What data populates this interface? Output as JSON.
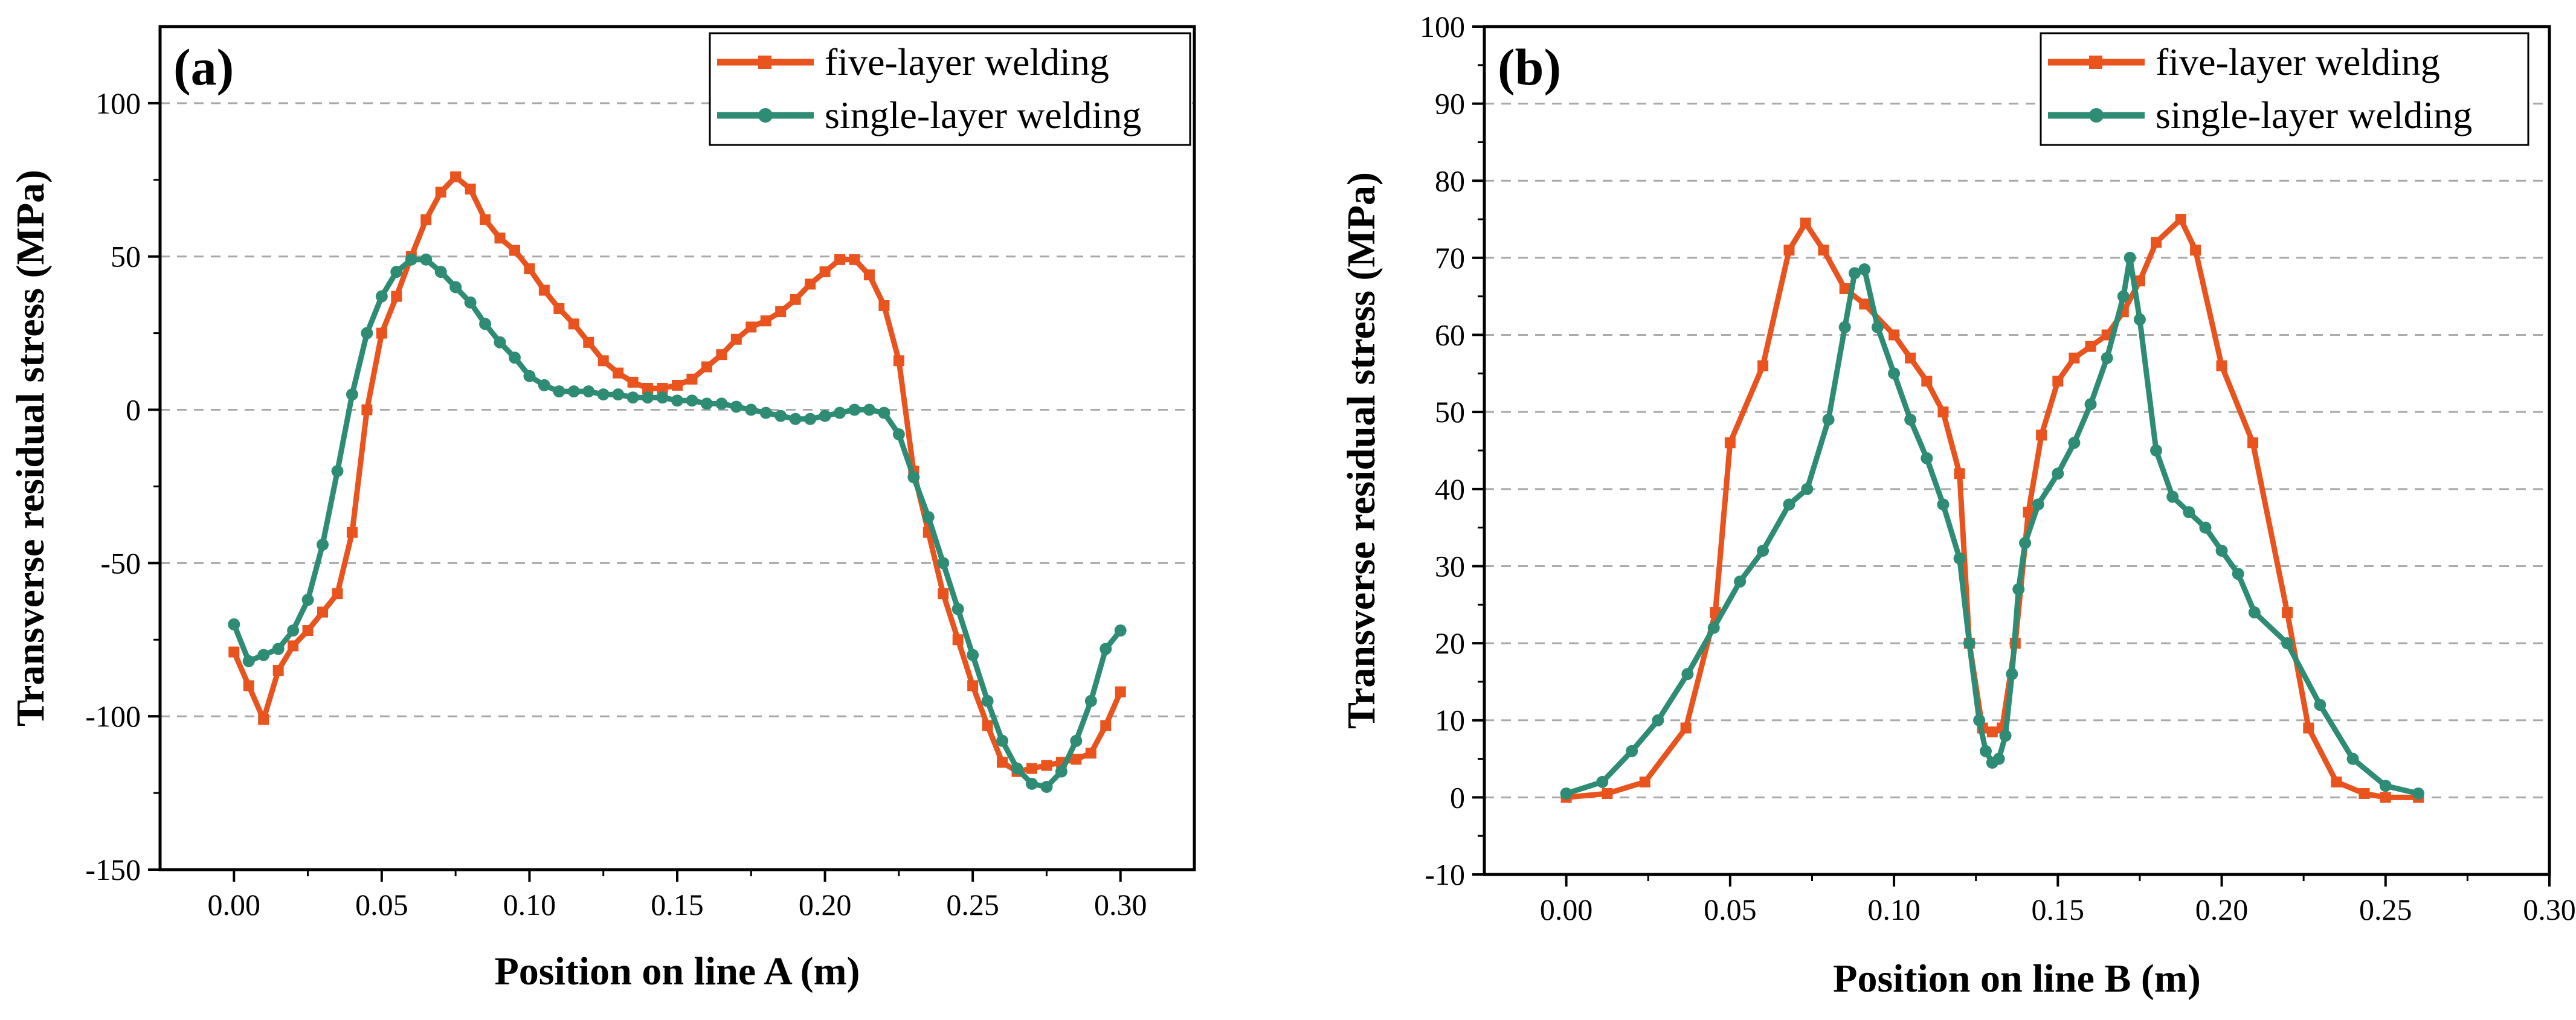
{
  "chart_data": [
    {
      "type": "line",
      "panel_label": "(a)",
      "xlabel": "Position on line A (m)",
      "ylabel": "Transverse residual stress (MPa)",
      "xlim": [
        -0.025,
        0.325
      ],
      "ylim": [
        -150,
        125
      ],
      "xticks": [
        0.0,
        0.05,
        0.1,
        0.15,
        0.2,
        0.25,
        0.3
      ],
      "xtick_labels": [
        "0.00",
        "0.05",
        "0.10",
        "0.15",
        "0.20",
        "0.25",
        "0.30"
      ],
      "yticks": [
        -150,
        -100,
        -50,
        0,
        50,
        100
      ],
      "ytick_labels": [
        "-150",
        "-100",
        "-50",
        "0",
        "50",
        "100"
      ],
      "grid": "horizontal dashed",
      "legend_position": "top-right",
      "series": [
        {
          "name": "five-layer welding",
          "color": "#E8531E",
          "marker": "square",
          "x": [
            0.0,
            0.005,
            0.01,
            0.015,
            0.02,
            0.025,
            0.03,
            0.035,
            0.04,
            0.045,
            0.05,
            0.055,
            0.06,
            0.065,
            0.07,
            0.075,
            0.08,
            0.085,
            0.09,
            0.095,
            0.1,
            0.105,
            0.11,
            0.115,
            0.12,
            0.125,
            0.13,
            0.135,
            0.14,
            0.145,
            0.15,
            0.155,
            0.16,
            0.165,
            0.17,
            0.175,
            0.18,
            0.185,
            0.19,
            0.195,
            0.2,
            0.205,
            0.21,
            0.215,
            0.22,
            0.225,
            0.23,
            0.235,
            0.24,
            0.245,
            0.25,
            0.255,
            0.26,
            0.265,
            0.27,
            0.275,
            0.28,
            0.285,
            0.29,
            0.295,
            0.3
          ],
          "y": [
            -79,
            -90,
            -101,
            -85,
            -77,
            -72,
            -66,
            -60,
            -40,
            0,
            25,
            37,
            50,
            62,
            71,
            76,
            72,
            62,
            56,
            52,
            46,
            39,
            33,
            28,
            22,
            16,
            12,
            9,
            7,
            7,
            8,
            10,
            14,
            18,
            23,
            27,
            29,
            32,
            36,
            41,
            45,
            49,
            49,
            44,
            34,
            16,
            -20,
            -40,
            -60,
            -75,
            -90,
            -103,
            -115,
            -118,
            -117,
            -116,
            -115,
            -114,
            -112,
            -103,
            -92
          ]
        },
        {
          "name": "single-layer welding",
          "color": "#2E8C75",
          "marker": "circle",
          "x": [
            0.0,
            0.005,
            0.01,
            0.015,
            0.02,
            0.025,
            0.03,
            0.035,
            0.04,
            0.045,
            0.05,
            0.055,
            0.06,
            0.065,
            0.07,
            0.075,
            0.08,
            0.085,
            0.09,
            0.095,
            0.1,
            0.105,
            0.11,
            0.115,
            0.12,
            0.125,
            0.13,
            0.135,
            0.14,
            0.145,
            0.15,
            0.155,
            0.16,
            0.165,
            0.17,
            0.175,
            0.18,
            0.185,
            0.19,
            0.195,
            0.2,
            0.205,
            0.21,
            0.215,
            0.22,
            0.225,
            0.23,
            0.235,
            0.24,
            0.245,
            0.25,
            0.255,
            0.26,
            0.265,
            0.27,
            0.275,
            0.28,
            0.285,
            0.29,
            0.295,
            0.3
          ],
          "y": [
            -70,
            -82,
            -80,
            -78,
            -72,
            -62,
            -44,
            -20,
            5,
            25,
            37,
            45,
            49,
            49,
            45,
            40,
            35,
            28,
            22,
            17,
            11,
            8,
            6,
            6,
            6,
            5,
            5,
            4,
            4,
            4,
            3,
            3,
            2,
            2,
            1,
            0,
            -1,
            -2,
            -3,
            -3,
            -2,
            -1,
            0,
            0,
            -1,
            -8,
            -22,
            -35,
            -50,
            -65,
            -80,
            -95,
            -108,
            -117,
            -122,
            -123,
            -118,
            -108,
            -95,
            -78,
            -72
          ]
        }
      ]
    },
    {
      "type": "line",
      "panel_label": "(b)",
      "xlabel": "Position on line B (m)",
      "ylabel": "Transverse residual stress (MPa)",
      "xlim": [
        -0.025,
        0.3
      ],
      "ylim": [
        -10,
        100
      ],
      "xticks": [
        0.0,
        0.05,
        0.1,
        0.15,
        0.2,
        0.25,
        0.3
      ],
      "xtick_labels": [
        "0.00",
        "0.05",
        "0.10",
        "0.15",
        "0.20",
        "0.25",
        "0.30"
      ],
      "yticks": [
        -10,
        0,
        10,
        20,
        30,
        40,
        50,
        60,
        70,
        80,
        90,
        100
      ],
      "ytick_labels": [
        "-10",
        "0",
        "10",
        "20",
        "30",
        "40",
        "50",
        "60",
        "70",
        "80",
        "90",
        "100"
      ],
      "grid": "horizontal dashed",
      "legend_position": "top-right",
      "series": [
        {
          "name": "five-layer welding",
          "color": "#E8531E",
          "marker": "square",
          "x": [
            0.0,
            0.0125,
            0.024,
            0.0365,
            0.0455,
            0.05,
            0.06,
            0.068,
            0.073,
            0.0785,
            0.085,
            0.091,
            0.1,
            0.105,
            0.11,
            0.115,
            0.12,
            0.123,
            0.127,
            0.13,
            0.133,
            0.137,
            0.141,
            0.145,
            0.15,
            0.155,
            0.16,
            0.165,
            0.17,
            0.175,
            0.18,
            0.1875,
            0.192,
            0.2,
            0.2095,
            0.22,
            0.2265,
            0.235,
            0.2435,
            0.25,
            0.26
          ],
          "y": [
            0,
            0.5,
            2,
            9,
            24,
            46,
            56,
            71,
            74.5,
            71,
            66,
            64,
            60,
            57,
            54,
            50,
            42,
            20,
            9,
            8.5,
            9,
            20,
            37,
            47,
            54,
            57,
            58.5,
            60,
            63,
            67,
            72,
            75,
            71,
            56,
            46,
            24,
            9,
            2,
            0.5,
            0,
            0
          ]
        },
        {
          "name": "single-layer welding",
          "color": "#2E8C75",
          "marker": "circle",
          "x": [
            0.0,
            0.011,
            0.02,
            0.028,
            0.037,
            0.045,
            0.053,
            0.06,
            0.068,
            0.0735,
            0.08,
            0.085,
            0.088,
            0.091,
            0.095,
            0.1,
            0.105,
            0.11,
            0.115,
            0.12,
            0.123,
            0.126,
            0.128,
            0.13,
            0.132,
            0.134,
            0.136,
            0.138,
            0.14,
            0.144,
            0.15,
            0.155,
            0.16,
            0.165,
            0.17,
            0.172,
            0.175,
            0.18,
            0.185,
            0.19,
            0.195,
            0.2,
            0.205,
            0.21,
            0.22,
            0.23,
            0.24,
            0.25,
            0.26
          ],
          "y": [
            0.5,
            2,
            6,
            10,
            16,
            22,
            28,
            32,
            38,
            40,
            49,
            61,
            68,
            68.5,
            61,
            55,
            49,
            44,
            38,
            31,
            20,
            10,
            6,
            4.5,
            5,
            8,
            16,
            27,
            33,
            38,
            42,
            46,
            51,
            57,
            65,
            70,
            62,
            45,
            39,
            37,
            35,
            32,
            29,
            24,
            20,
            12,
            5,
            1.5,
            0.5
          ]
        }
      ]
    }
  ]
}
